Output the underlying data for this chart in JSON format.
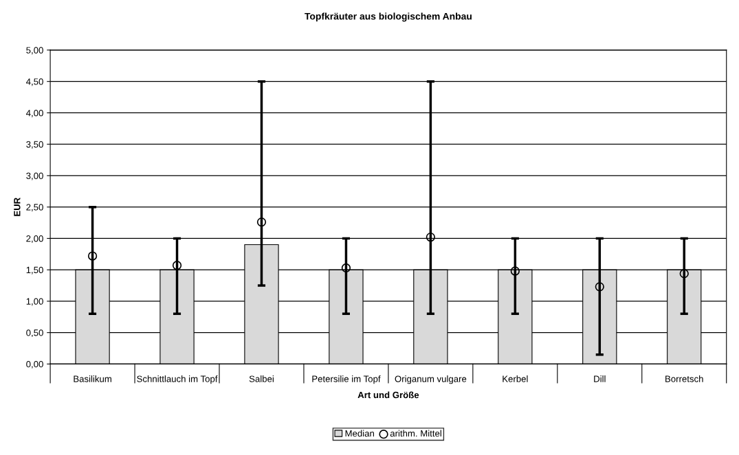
{
  "chart_data": {
    "type": "bar",
    "title": "Topfkräuter aus biologischem Anbau",
    "xlabel": "Art und Größe",
    "ylabel": "EUR",
    "categories": [
      "Basilikum",
      "Schnittlauch im Topf",
      "Salbei",
      "Petersilie im Topf",
      "Origanum vulgare",
      "Kerbel",
      "Dill",
      "Borretsch"
    ],
    "series": [
      {
        "name": "Median",
        "color": "#d9d9d9",
        "values": [
          1.5,
          1.5,
          1.9,
          1.5,
          1.5,
          1.5,
          1.5,
          1.5
        ],
        "errors": [
          [
            0.8,
            2.5
          ],
          [
            0.8,
            2.0
          ],
          [
            1.25,
            4.5
          ],
          [
            0.8,
            2.0
          ],
          [
            0.8,
            4.5
          ],
          [
            0.8,
            2.0
          ],
          [
            0.15,
            2.0
          ],
          [
            0.8,
            2.0
          ]
        ]
      },
      {
        "name": "arithm. Mittel",
        "type": "scatter",
        "color": "#000000",
        "marker": "circle",
        "x": [
          "Basilikum",
          "Schnittlauch im Topf",
          "Salbei",
          "Petersilie im Topf",
          "Origanum vulgare",
          "Kerbel",
          "Dill",
          "Borretsch"
        ],
        "values": [
          1.72,
          1.57,
          2.26,
          1.53,
          2.02,
          1.48,
          1.23,
          1.44
        ]
      }
    ],
    "ylim": [
      0,
      5
    ],
    "yticks": [
      {
        "value": 0,
        "label": "0,00"
      },
      {
        "value": 0.5,
        "label": "0,50"
      },
      {
        "value": 1,
        "label": "1,00"
      },
      {
        "value": 1.5,
        "label": "1,50"
      },
      {
        "value": 2,
        "label": "2,00"
      },
      {
        "value": 2.5,
        "label": "2,50"
      },
      {
        "value": 3,
        "label": "3,00"
      },
      {
        "value": 3.5,
        "label": "3,50"
      },
      {
        "value": 4,
        "label": "4,00"
      },
      {
        "value": 4.5,
        "label": "4,50"
      },
      {
        "value": 5,
        "label": "5,00"
      }
    ],
    "grid": "y",
    "legend": "bottom"
  }
}
